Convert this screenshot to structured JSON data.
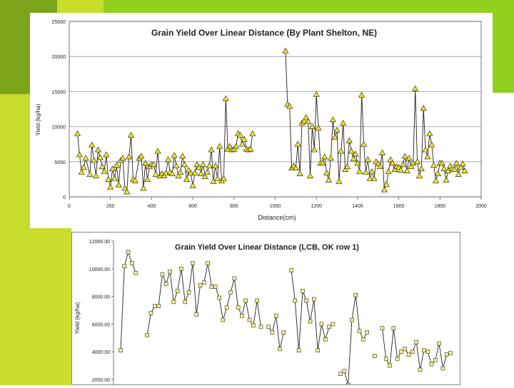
{
  "colors": {
    "background_green": "#c8dd2c",
    "background_dark_green": "#7da51b",
    "lime": "#93cf1d",
    "marker_fill_1": "#f2ea1c",
    "marker_fill_2": "#f6f08c",
    "line": "#222222"
  },
  "chart_data": [
    {
      "type": "line",
      "title": "Grain Yield Over Linear Distance (By Plant Shelton, NE)",
      "xlabel": "Distance(cm)",
      "ylabel": "Yield (kg/ha)",
      "xlim": [
        0,
        2000
      ],
      "ylim": [
        0,
        25000
      ],
      "xticks": [
        "0",
        "200",
        "400",
        "600",
        "800",
        "1000",
        "1200",
        "1400",
        "1600",
        "1800",
        "2000"
      ],
      "yticks": [
        "0",
        "5000",
        "10000",
        "15000",
        "20000",
        "25000"
      ],
      "marker": "triangle",
      "grid": "horizontal",
      "series": [
        {
          "name": "segment-1",
          "x": [
            40,
            50,
            60,
            70,
            80,
            100,
            110,
            120,
            130,
            140,
            150,
            160,
            170,
            180,
            190,
            200,
            210,
            220,
            230,
            240,
            250,
            260,
            270,
            280,
            290,
            300,
            310,
            320,
            340,
            350,
            360,
            370,
            380,
            390,
            400,
            410,
            420,
            430,
            440,
            450,
            460,
            470,
            480,
            490,
            500,
            510,
            520,
            530,
            540,
            550,
            560,
            570,
            580,
            590,
            600,
            610,
            620,
            630,
            640,
            650,
            660,
            670,
            680,
            690,
            700,
            710,
            720,
            730,
            740,
            750,
            760,
            770,
            780,
            790,
            800,
            810,
            820,
            830,
            840,
            850,
            860,
            870,
            880,
            890
          ],
          "y": [
            9000,
            6000,
            3500,
            4200,
            5500,
            3200,
            7400,
            5200,
            3000,
            6700,
            5600,
            4300,
            3600,
            6000,
            2500,
            1400,
            4000,
            2600,
            4500,
            1700,
            5200,
            5500,
            1200,
            700,
            5700,
            8800,
            2500,
            2300,
            5500,
            5800,
            1200,
            4800,
            2500,
            4300,
            4600,
            4600,
            3200,
            6500,
            3000,
            3300,
            3000,
            3400,
            5300,
            3500,
            3300,
            5900,
            4400,
            3000,
            3500,
            5800,
            4600,
            2500,
            3800,
            3400,
            1600,
            3400,
            4600,
            4200,
            3300,
            4600,
            2900,
            3500,
            4400,
            6700,
            2200,
            4400,
            2600,
            7200,
            2300,
            2600,
            14000,
            6800,
            7200,
            6700,
            6800,
            7200,
            9000,
            8800,
            7500,
            8200,
            6800,
            6700,
            6800,
            9000
          ]
        },
        {
          "name": "segment-2",
          "x": [
            1050,
            1060,
            1070,
            1080,
            1090,
            1100,
            1110,
            1120,
            1130,
            1140,
            1150,
            1160,
            1170,
            1180,
            1190,
            1200,
            1210,
            1220,
            1230,
            1240,
            1250,
            1260,
            1270,
            1280,
            1290,
            1300,
            1310,
            1320,
            1330,
            1340,
            1350,
            1360,
            1370,
            1380,
            1390,
            1400,
            1410,
            1420,
            1430,
            1440,
            1450,
            1460,
            1470,
            1480,
            1490,
            1500,
            1510,
            1520,
            1530,
            1540,
            1550,
            1560,
            1570,
            1580,
            1590,
            1600,
            1610,
            1620,
            1630,
            1640,
            1650,
            1660,
            1670,
            1680,
            1690,
            1700,
            1710,
            1720,
            1730,
            1740,
            1750,
            1760,
            1770,
            1780,
            1790,
            1800,
            1810,
            1820,
            1830,
            1840,
            1850,
            1860,
            1870,
            1880,
            1890,
            1900,
            1910,
            1920
          ],
          "y": [
            20800,
            13200,
            12900,
            4100,
            4400,
            4100,
            7500,
            3300,
            10500,
            10800,
            11300,
            10700,
            3000,
            10000,
            6700,
            14600,
            9800,
            4800,
            4800,
            5700,
            3400,
            2400,
            5500,
            11000,
            8500,
            9500,
            2200,
            6500,
            10500,
            3900,
            4300,
            8000,
            6500,
            5400,
            6100,
            4800,
            3600,
            14500,
            7500,
            3500,
            5300,
            2600,
            3600,
            2600,
            5000,
            4700,
            4300,
            6300,
            1000,
            1800,
            3600,
            5300,
            4800,
            3900,
            4300,
            4200,
            3800,
            4600,
            5800,
            3700,
            5500,
            4300,
            4800,
            15400,
            5000,
            3000,
            4000,
            12600,
            6700,
            5700,
            9000,
            7400,
            4500,
            2300,
            3300,
            4800,
            4800,
            4000,
            2400,
            3700,
            4400,
            4000,
            3900,
            4800,
            3200,
            4200,
            4700,
            3700
          ]
        }
      ]
    },
    {
      "type": "line",
      "title": "Grain Yield Over Linear Distance (LCB, OK row 1)",
      "xlabel": "",
      "ylabel": "Yield (kg/ha)",
      "ylim": [
        2000,
        12000
      ],
      "yticks": [
        "2000.00",
        "4000.00",
        "6000.00",
        "8000.00",
        "10000.00",
        "12000.00"
      ],
      "marker": "square",
      "series": [
        {
          "name": "row-1",
          "index": [
            1,
            2,
            3,
            4,
            5,
            6,
            8,
            9,
            10,
            11,
            12,
            13,
            14,
            15,
            16,
            17,
            18,
            19,
            20,
            21,
            22,
            23,
            24,
            25,
            26,
            27,
            28,
            29,
            30,
            31,
            32,
            33,
            34,
            35,
            36,
            37,
            38,
            39,
            40,
            41,
            42,
            43,
            44,
            45,
            46,
            47,
            48,
            49,
            50,
            51,
            52,
            53,
            54,
            55,
            56,
            57,
            58,
            59,
            60,
            61,
            62,
            63,
            64,
            65,
            66,
            67,
            68,
            69,
            70,
            71,
            72,
            73,
            74,
            75,
            76,
            77,
            78,
            79,
            80,
            81,
            82,
            83,
            84,
            85,
            86,
            87,
            88
          ],
          "y": [
            4100,
            10200,
            11200,
            10400,
            9700,
            null,
            5200,
            6800,
            7300,
            7300,
            9600,
            8900,
            9800,
            7600,
            8400,
            10000,
            7600,
            8300,
            10400,
            6700,
            8800,
            9000,
            10400,
            8700,
            8700,
            7900,
            6300,
            7200,
            8300,
            9300,
            7200,
            6600,
            7700,
            6300,
            5900,
            7700,
            5800,
            null,
            5800,
            5400,
            6600,
            4200,
            5400,
            null,
            9900,
            7700,
            4100,
            8400,
            7700,
            6200,
            7800,
            4100,
            6000,
            4900,
            5800,
            6000,
            null,
            2400,
            2600,
            1600,
            6300,
            8100,
            5500,
            4900,
            5400,
            null,
            3700,
            null,
            5700,
            3500,
            3000,
            5700,
            3500,
            4000,
            4200,
            3800,
            4000,
            4700,
            2700,
            4100,
            4000,
            3100,
            3400,
            4600,
            2800,
            3800,
            3900
          ]
        }
      ]
    }
  ]
}
